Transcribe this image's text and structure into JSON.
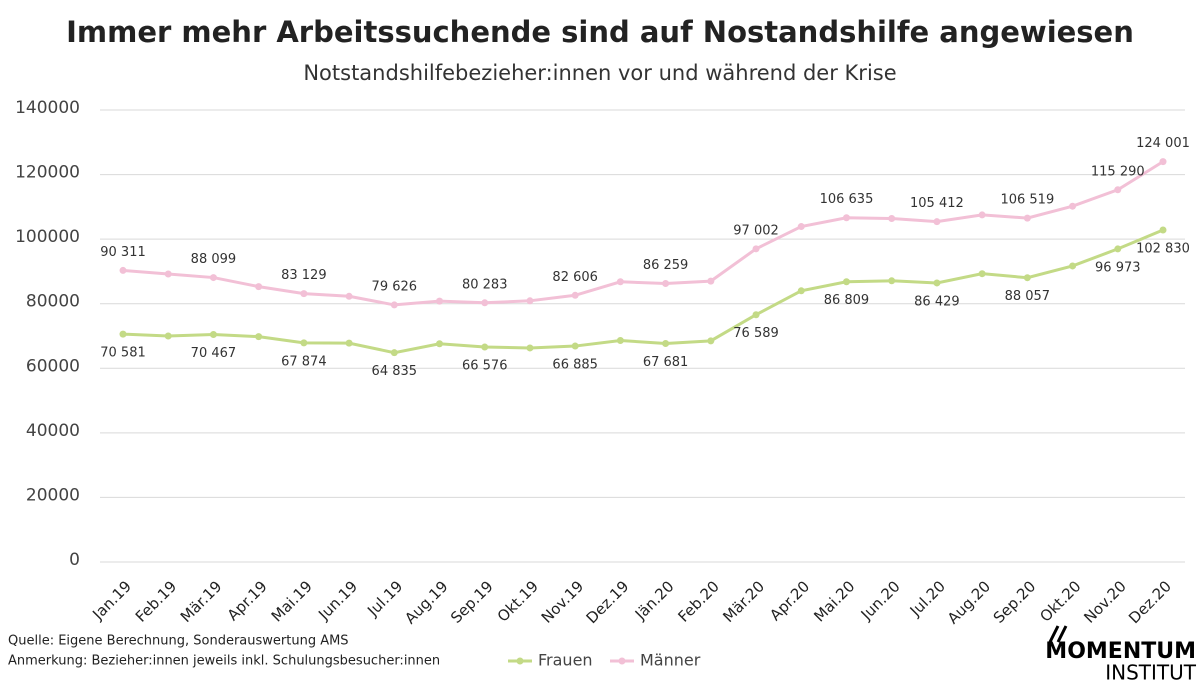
{
  "chart_data": {
    "type": "line",
    "title": "Immer mehr Arbeitssuchende sind auf Nostandshilfe angewiesen",
    "subtitle": "Notstandshilfebezieher:innen vor und während der Krise",
    "categories": [
      "Jan.19",
      "Feb.19",
      "Mär.19",
      "Apr.19",
      "Mai.19",
      "Jun.19",
      "Jul.19",
      "Aug.19",
      "Sep.19",
      "Okt.19",
      "Nov.19",
      "Dez.19",
      "Jän.20",
      "Feb.20",
      "Mär.20",
      "Apr.20",
      "Mai.20",
      "Jun.20",
      "Jul.20",
      "Aug.20",
      "Sep.20",
      "Okt.20",
      "Nov.20",
      "Dez.20"
    ],
    "series": [
      {
        "name": "Frauen",
        "color": "#c3da86",
        "label_side": "below",
        "values": [
          70581,
          70000,
          70467,
          69800,
          67874,
          67800,
          64835,
          67600,
          66576,
          66300,
          66885,
          68600,
          67681,
          68500,
          76589,
          84000,
          86809,
          87100,
          86429,
          89300,
          88057,
          91700,
          96973,
          102830
        ],
        "value_labels": [
          "70 581",
          null,
          "70 467",
          null,
          "67 874",
          null,
          "64 835",
          null,
          "66 576",
          null,
          "66 885",
          null,
          "67 681",
          null,
          "76 589",
          null,
          "86 809",
          null,
          "86 429",
          null,
          "88 057",
          null,
          "96 973",
          "102 830"
        ]
      },
      {
        "name": "Männer",
        "color": "#f2c0d6",
        "label_side": "above",
        "values": [
          90311,
          89200,
          88099,
          85300,
          83129,
          82300,
          79626,
          80800,
          80283,
          80900,
          82606,
          86800,
          86259,
          87000,
          97002,
          103900,
          106635,
          106400,
          105412,
          107500,
          106519,
          110200,
          115290,
          124001
        ],
        "value_labels": [
          "90 311",
          null,
          "88 099",
          null,
          "83 129",
          null,
          "79 626",
          null,
          "80 283",
          null,
          "82 606",
          null,
          "86 259",
          null,
          "97 002",
          null,
          "106 635",
          null,
          "105 412",
          null,
          "106 519",
          null,
          "115 290",
          "124 001"
        ]
      }
    ],
    "ylim": [
      0,
      140000
    ],
    "yticks": [
      0,
      20000,
      40000,
      60000,
      80000,
      100000,
      120000,
      140000
    ],
    "grid": true,
    "legend": "bottom",
    "source": "Quelle:  Eigene Berechnung, Sonderauswertung AMS",
    "note": "Anmerkung: Bezieher:innen jeweils inkl. Schulungsbesucher:innen",
    "logo": [
      "MOMENTUM",
      "INSTITUT"
    ]
  }
}
